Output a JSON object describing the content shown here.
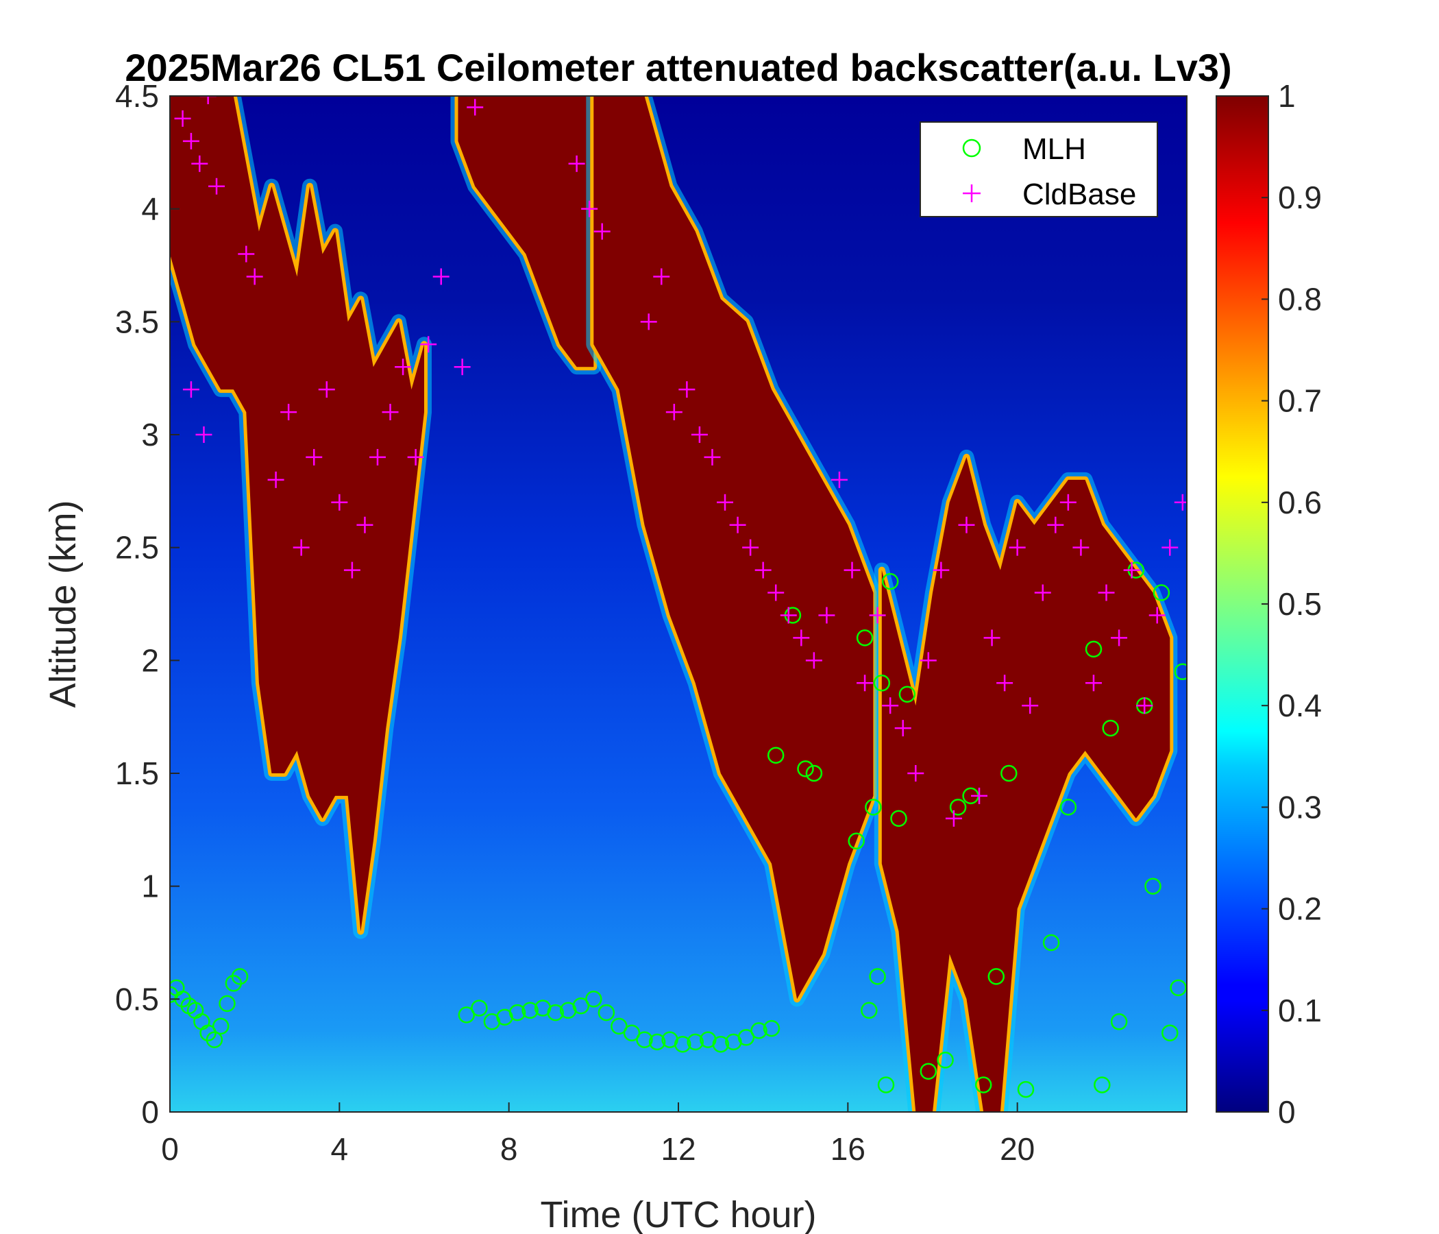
{
  "chart_data": {
    "type": "heatmap",
    "title": "2025Mar26 CL51 Ceilometer attenuated backscatter(a.u. Lv3)",
    "xlabel": "Time (UTC hour)",
    "ylabel": "Altitude (km)",
    "xlim": [
      0,
      24
    ],
    "ylim": [
      0,
      4.5
    ],
    "x_ticks": [
      0,
      4,
      8,
      12,
      16,
      20
    ],
    "x_tick_labels": [
      "0",
      "4",
      "8",
      "12",
      "16",
      "20"
    ],
    "y_ticks": [
      0,
      0.5,
      1,
      1.5,
      2,
      2.5,
      3,
      3.5,
      4,
      4.5
    ],
    "y_tick_labels": [
      "0",
      "0.5",
      "1",
      "1.5",
      "2",
      "2.5",
      "3",
      "3.5",
      "4",
      "4.5"
    ],
    "colorbar": {
      "colormap": "jet",
      "range": [
        0,
        1
      ],
      "ticks": [
        0,
        0.1,
        0.2,
        0.3,
        0.4,
        0.5,
        0.6,
        0.7,
        0.8,
        0.9,
        1
      ],
      "tick_labels": [
        "0",
        "0.1",
        "0.2",
        "0.3",
        "0.4",
        "0.5",
        "0.6",
        "0.7",
        "0.8",
        "0.9",
        "1"
      ]
    },
    "legend": {
      "placement": "top-right",
      "entries": [
        {
          "name": "MLH",
          "marker": "circle",
          "color": "#00ff00"
        },
        {
          "name": "CldBase",
          "marker": "plus",
          "color": "#ff00ff"
        }
      ]
    },
    "saturated_regions": [
      {
        "x": [
          0.0,
          0.3,
          0.6,
          0.9,
          1.2,
          1.5,
          1.8,
          2.1,
          2.4,
          2.7,
          3.0,
          3.3,
          3.6,
          3.9,
          4.2,
          4.5,
          4.8,
          5.1,
          5.4,
          5.7,
          6.0
        ],
        "top": [
          4.5,
          4.5,
          4.5,
          4.5,
          4.5,
          4.5,
          4.2,
          3.9,
          4.1,
          3.9,
          3.7,
          4.1,
          3.8,
          3.9,
          3.5,
          3.6,
          3.3,
          3.4,
          3.5,
          3.2,
          3.4
        ],
        "bottom": [
          3.8,
          3.6,
          3.4,
          3.3,
          3.2,
          3.2,
          3.1,
          1.9,
          1.5,
          1.5,
          1.6,
          1.4,
          1.3,
          1.4,
          1.4,
          0.8,
          1.2,
          1.7,
          2.1,
          2.6,
          3.1
        ]
      },
      {
        "x": [
          6.8,
          7.2,
          7.6,
          8.0,
          8.4,
          8.8,
          9.2,
          9.6,
          10.0
        ],
        "top": [
          4.5,
          4.5,
          4.5,
          4.5,
          4.5,
          4.5,
          4.5,
          4.5,
          4.5
        ],
        "bottom": [
          4.3,
          4.1,
          4.0,
          3.9,
          3.8,
          3.6,
          3.4,
          3.3,
          3.3
        ]
      },
      {
        "x": [
          10.0,
          10.6,
          11.2,
          11.8,
          12.4,
          13.0,
          13.6,
          14.2,
          14.8,
          15.4,
          16.0,
          16.6
        ],
        "top": [
          4.5,
          4.5,
          4.5,
          4.1,
          3.9,
          3.6,
          3.5,
          3.2,
          3.0,
          2.8,
          2.6,
          2.3
        ],
        "bottom": [
          3.4,
          3.2,
          2.6,
          2.2,
          1.9,
          1.5,
          1.3,
          1.1,
          0.5,
          0.7,
          1.1,
          1.4
        ]
      },
      {
        "x": [
          16.8,
          17.2,
          17.6,
          18.0,
          18.4,
          18.8,
          19.2,
          19.6,
          20.0,
          20.4,
          20.8,
          21.2,
          21.6,
          22.0,
          22.4,
          22.8,
          23.2,
          23.6
        ],
        "top": [
          2.4,
          2.1,
          1.8,
          2.3,
          2.7,
          2.9,
          2.6,
          2.4,
          2.7,
          2.6,
          2.7,
          2.8,
          2.8,
          2.6,
          2.5,
          2.4,
          2.3,
          2.1
        ],
        "bottom": [
          1.1,
          0.8,
          0.0,
          0.0,
          0.7,
          0.5,
          0.0,
          0.0,
          0.9,
          1.1,
          1.3,
          1.5,
          1.6,
          1.5,
          1.4,
          1.3,
          1.4,
          1.6
        ]
      }
    ],
    "series": [
      {
        "name": "MLH",
        "x": [
          0.0,
          0.15,
          0.3,
          0.45,
          0.6,
          0.75,
          0.9,
          1.05,
          1.2,
          1.35,
          1.5,
          1.65,
          7.0,
          7.3,
          7.6,
          7.9,
          8.2,
          8.5,
          8.8,
          9.1,
          9.4,
          9.7,
          10.0,
          10.3,
          10.6,
          10.9,
          11.2,
          11.5,
          11.8,
          12.1,
          12.4,
          12.7,
          13.0,
          13.3,
          13.6,
          13.9,
          14.2,
          14.3,
          14.7,
          15.0,
          15.2,
          16.2,
          16.4,
          16.6,
          16.8,
          17.0,
          17.2,
          16.5,
          16.7,
          16.9,
          17.4,
          17.9,
          18.3,
          18.6,
          18.9,
          19.2,
          19.5,
          19.8,
          20.2,
          20.8,
          21.2,
          21.8,
          22.0,
          22.2,
          22.4,
          22.8,
          23.0,
          23.2,
          23.4,
          23.6,
          23.8,
          23.9
        ],
        "y": [
          0.52,
          0.55,
          0.5,
          0.47,
          0.45,
          0.4,
          0.35,
          0.32,
          0.38,
          0.48,
          0.57,
          0.6,
          0.43,
          0.46,
          0.4,
          0.42,
          0.44,
          0.45,
          0.46,
          0.44,
          0.45,
          0.47,
          0.5,
          0.44,
          0.38,
          0.35,
          0.32,
          0.31,
          0.32,
          0.3,
          0.31,
          0.32,
          0.3,
          0.31,
          0.33,
          0.36,
          0.37,
          1.58,
          2.2,
          1.52,
          1.5,
          1.2,
          2.1,
          1.35,
          1.9,
          2.35,
          1.3,
          0.45,
          0.6,
          0.12,
          1.85,
          0.18,
          0.23,
          1.35,
          1.4,
          0.12,
          0.6,
          1.5,
          0.1,
          0.75,
          1.35,
          2.05,
          0.12,
          1.7,
          0.4,
          2.4,
          1.8,
          1.0,
          2.3,
          0.35,
          0.55,
          1.95
        ]
      },
      {
        "name": "CldBase",
        "x": [
          0.3,
          0.5,
          0.7,
          0.9,
          1.1,
          0.5,
          0.8,
          1.8,
          2.0,
          2.5,
          2.8,
          3.1,
          3.4,
          3.7,
          4.0,
          4.3,
          4.6,
          4.9,
          5.2,
          5.5,
          5.8,
          6.1,
          6.4,
          6.9,
          7.2,
          9.6,
          9.9,
          10.2,
          11.3,
          11.6,
          11.9,
          12.2,
          12.5,
          12.8,
          13.1,
          13.4,
          13.7,
          14.0,
          14.3,
          14.6,
          14.9,
          15.2,
          15.5,
          15.8,
          16.1,
          16.4,
          16.7,
          17.0,
          17.3,
          17.6,
          17.9,
          18.2,
          18.5,
          18.8,
          19.1,
          19.4,
          19.7,
          20.0,
          20.3,
          20.6,
          20.9,
          21.2,
          21.5,
          21.8,
          22.1,
          22.4,
          22.7,
          23.0,
          23.3,
          23.6,
          23.9
        ],
        "y": [
          4.4,
          4.3,
          4.2,
          4.5,
          4.1,
          3.2,
          3.0,
          3.8,
          3.7,
          2.8,
          3.1,
          2.5,
          2.9,
          3.2,
          2.7,
          2.4,
          2.6,
          2.9,
          3.1,
          3.3,
          2.9,
          3.4,
          3.7,
          3.3,
          4.45,
          4.2,
          4.0,
          3.9,
          3.5,
          3.7,
          3.1,
          3.2,
          3.0,
          2.9,
          2.7,
          2.6,
          2.5,
          2.4,
          2.3,
          2.2,
          2.1,
          2.0,
          2.2,
          2.8,
          2.4,
          1.9,
          2.2,
          1.8,
          1.7,
          1.5,
          2.0,
          2.4,
          1.3,
          2.6,
          1.4,
          2.1,
          1.9,
          2.5,
          1.8,
          2.3,
          2.6,
          2.7,
          2.5,
          1.9,
          2.3,
          2.1,
          2.4,
          1.8,
          2.2,
          2.5,
          2.7
        ]
      }
    ]
  }
}
